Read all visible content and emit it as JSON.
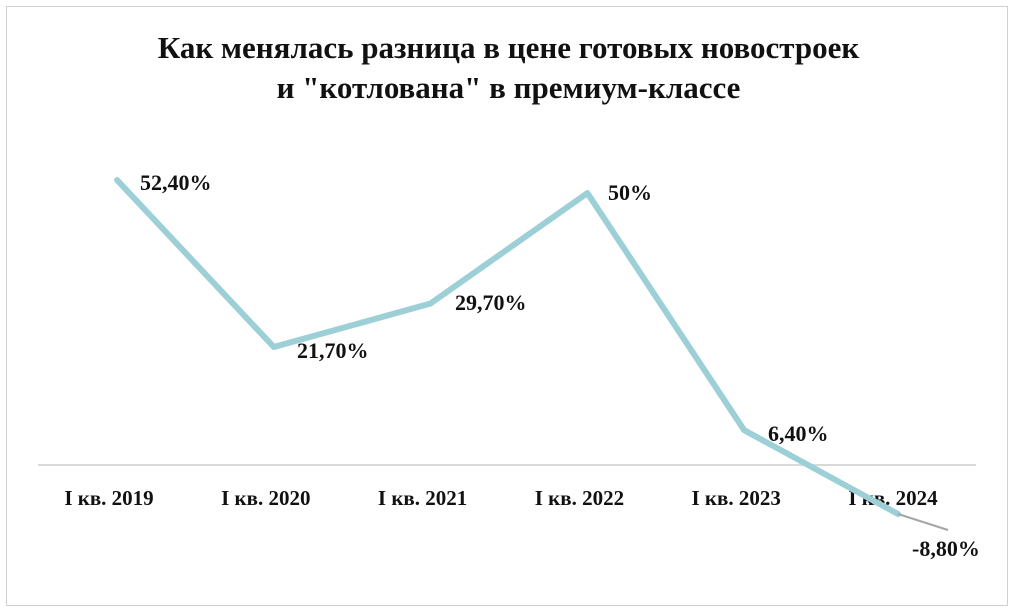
{
  "chart_data": {
    "type": "line",
    "title_lines": [
      "Как менялась разница в цене готовых новостроек",
      "и \"котлована\" в премиум-классе"
    ],
    "categories": [
      "I кв. 2019",
      "I кв. 2020",
      "I кв. 2021",
      "I кв. 2022",
      "I кв. 2023",
      "I кв. 2024"
    ],
    "series": [
      {
        "values": [
          52.4,
          21.7,
          29.7,
          50,
          6.4,
          -8.8
        ],
        "labels": [
          "52,40%",
          "21,70%",
          "29,70%",
          "50%",
          "6,40%",
          "-8,80%"
        ],
        "color": "#9ccfd6"
      }
    ],
    "ylim": [
      -10,
      55
    ],
    "xlabel": "",
    "ylabel": "",
    "grid": false,
    "legend": "none",
    "axis_color": "#d9d9d9",
    "below_axis_color": "#a6a6a6"
  }
}
